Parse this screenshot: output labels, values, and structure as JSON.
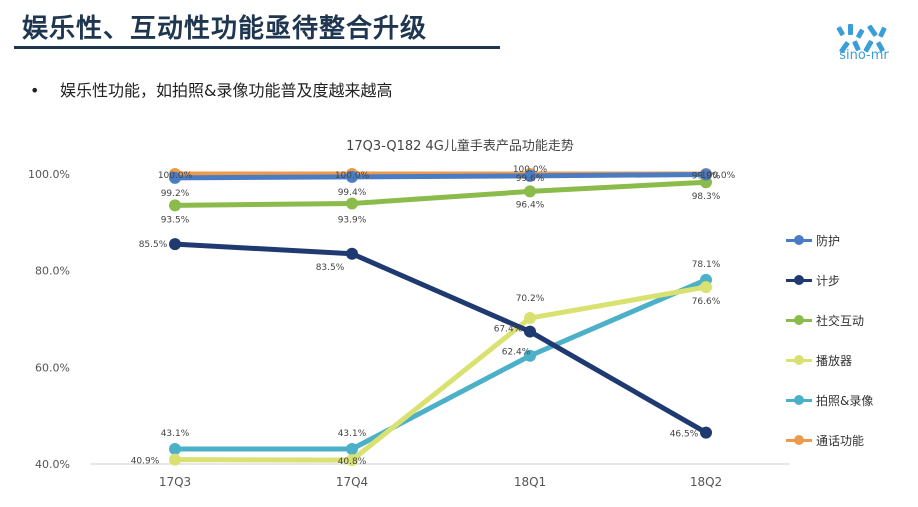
{
  "slide": {
    "title": "娱乐性、互动性功能亟待整合升级",
    "bullet": "娱乐性功能，如拍照&录像功能普及度越来越高",
    "logo_text": "sino-mr"
  },
  "colors": {
    "title": "#1f3650",
    "logo": "#3a9ed8"
  },
  "chart_data": {
    "type": "line",
    "title": "17Q3-Q182 4G儿童手表产品功能走势",
    "categories": [
      "17Q3",
      "17Q4",
      "18Q1",
      "18Q2"
    ],
    "ylim": [
      40,
      100
    ],
    "yticks": [
      40,
      60,
      80,
      100
    ],
    "ytick_labels": [
      "40.0%",
      "60.0%",
      "80.0%",
      "100.0%"
    ],
    "grid": false,
    "legend_position": "right",
    "series": [
      {
        "name": "防护",
        "color": "#4a7cc4",
        "values": [
          99.2,
          99.4,
          99.6,
          99.9
        ],
        "labels": [
          "99.2%",
          "99.4%",
          "99.6%",
          "99.9%"
        ]
      },
      {
        "name": "计步",
        "color": "#1f3a70",
        "values": [
          85.5,
          83.5,
          67.4,
          46.5
        ],
        "labels": [
          "85.5%",
          "83.5%",
          "67.4%",
          "46.5%"
        ]
      },
      {
        "name": "社交互动",
        "color": "#8bbb4a",
        "values": [
          93.5,
          93.9,
          96.4,
          98.3
        ],
        "labels": [
          "93.5%",
          "93.9%",
          "96.4%",
          "98.3%"
        ]
      },
      {
        "name": "播放器",
        "color": "#d9e270",
        "values": [
          40.9,
          40.8,
          70.2,
          76.6
        ],
        "labels": [
          "40.9%",
          "40.8%",
          "70.2%",
          "76.6%"
        ]
      },
      {
        "name": "拍照&录像",
        "color": "#4bb0c8",
        "values": [
          43.1,
          43.1,
          62.4,
          78.1
        ],
        "labels": [
          "43.1%",
          "43.1%",
          "62.4%",
          "78.1%"
        ]
      },
      {
        "name": "通话功能",
        "color": "#ee9a4d",
        "values": [
          100.0,
          100.0,
          100.0,
          100.0
        ],
        "labels": [
          "100.0%",
          "100.0%",
          "100.0%",
          "100.0%"
        ]
      }
    ]
  }
}
